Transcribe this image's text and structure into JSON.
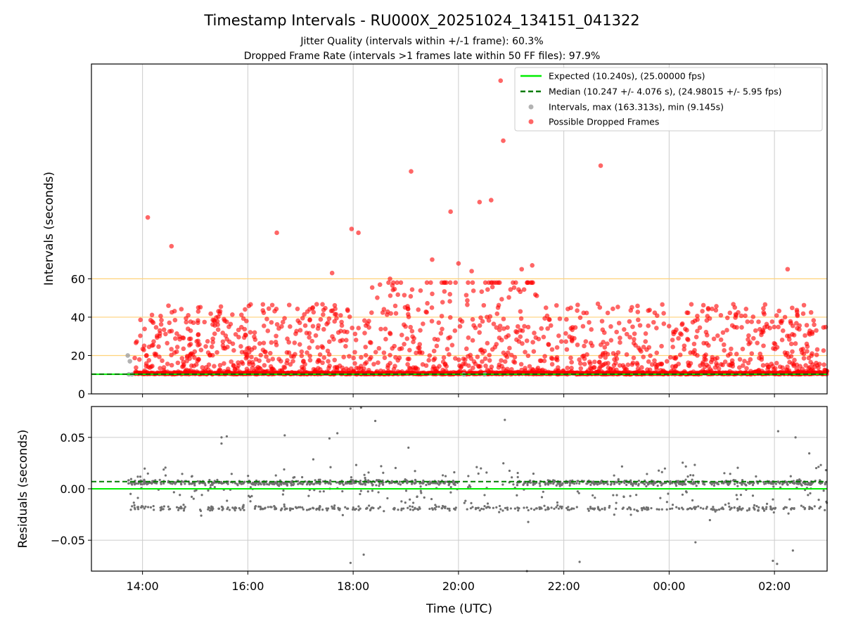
{
  "figure": {
    "title": "Timestamp Intervals - RU000X_20251024_134151_041322",
    "subtitle_1": "Jitter Quality (intervals within +/-1 frame): 60.3%",
    "subtitle_2": "Dropped Frame Rate (intervals >1 frames late within 50 FF files): 97.9%"
  },
  "colors": {
    "expected": "#00ee00",
    "median": "#007a00",
    "intervals": "#a0a0a0",
    "dropped": "#ff0000",
    "threshold": "#ffd27a",
    "grid": "#cccccc",
    "residual": "#707070"
  },
  "chart_data": [
    {
      "type": "scatter",
      "panel": "intervals",
      "ylabel": "Intervals (seconds)",
      "xlabel": "",
      "xlim_hours": [
        13.03,
        27.0
      ],
      "ylim": [
        0,
        172
      ],
      "yticks": [
        0,
        20,
        40,
        60
      ],
      "ytick_labels": [
        "0",
        "20",
        "40",
        "60"
      ],
      "threshold_lines": [
        20,
        40,
        60
      ],
      "expected_interval": 10.24,
      "median_interval": 10.247,
      "legend": {
        "position": "upper right",
        "expected": "Expected (10.240s), (25.00000 fps)",
        "median": "Median (10.247 +/- 4.076 s), (24.98015 +/- 5.95 fps)",
        "intervals": "Intervals, max (163.313s), min (9.145s)",
        "dropped": "Possible Dropped Frames"
      },
      "normal_intervals": [
        {
          "x": 13.72,
          "y": 20.0
        },
        {
          "x": 13.76,
          "y": 17.0
        },
        {
          "x": 13.74,
          "y": 10.2
        },
        {
          "x": 13.8,
          "y": 10.2
        },
        {
          "x": 20.1,
          "y": 10.2
        },
        {
          "x": 20.5,
          "y": 10.3
        }
      ],
      "dropped_outliers": [
        {
          "x": 14.1,
          "y": 92.0
        },
        {
          "x": 14.55,
          "y": 77.0
        },
        {
          "x": 16.55,
          "y": 84.0
        },
        {
          "x": 17.97,
          "y": 86.0
        },
        {
          "x": 18.1,
          "y": 84.0
        },
        {
          "x": 19.1,
          "y": 116.0
        },
        {
          "x": 19.85,
          "y": 95.0
        },
        {
          "x": 20.4,
          "y": 100.0
        },
        {
          "x": 20.62,
          "y": 101.0
        },
        {
          "x": 20.8,
          "y": 163.3
        },
        {
          "x": 20.85,
          "y": 132.0
        },
        {
          "x": 22.7,
          "y": 119.0
        },
        {
          "x": 19.5,
          "y": 70.0
        },
        {
          "x": 20.0,
          "y": 68.0
        },
        {
          "x": 20.25,
          "y": 64.0
        },
        {
          "x": 21.2,
          "y": 65.0
        },
        {
          "x": 21.4,
          "y": 67.0
        },
        {
          "x": 26.25,
          "y": 65.0
        },
        {
          "x": 17.6,
          "y": 63.0
        },
        {
          "x": 18.7,
          "y": 60.0
        }
      ],
      "dropped_cloud_hours": [
        13.85,
        27.0
      ],
      "baseline_value": 10.24
    },
    {
      "type": "scatter",
      "panel": "residuals",
      "ylabel": "Residuals (seconds)",
      "xlabel": "Time (UTC)",
      "xlim_hours": [
        13.03,
        27.0
      ],
      "ylim": [
        -0.08,
        0.08
      ],
      "yticks": [
        -0.05,
        0.0,
        0.05
      ],
      "ytick_labels": [
        "−0.05",
        "0.00",
        "0.05"
      ],
      "expected_residual": 0.0,
      "median_residual": 0.007,
      "xticks_hours": [
        14,
        16,
        18,
        20,
        22,
        24,
        26
      ],
      "xtick_labels": [
        "14:00",
        "16:00",
        "18:00",
        "20:00",
        "22:00",
        "00:00",
        "02:00"
      ],
      "residual_points": [
        {
          "x": 17.95,
          "y": 0.078
        },
        {
          "x": 18.15,
          "y": 0.079
        },
        {
          "x": 20.88,
          "y": 0.067
        },
        {
          "x": 18.42,
          "y": 0.066
        },
        {
          "x": 17.95,
          "y": -0.072
        },
        {
          "x": 18.2,
          "y": -0.064
        },
        {
          "x": 21.3,
          "y": -0.08
        },
        {
          "x": 22.3,
          "y": -0.071
        },
        {
          "x": 25.97,
          "y": -0.07
        },
        {
          "x": 26.05,
          "y": -0.073
        },
        {
          "x": 15.6,
          "y": 0.051
        },
        {
          "x": 15.5,
          "y": 0.05
        },
        {
          "x": 16.7,
          "y": 0.052
        },
        {
          "x": 17.55,
          "y": 0.049
        },
        {
          "x": 17.7,
          "y": 0.054
        },
        {
          "x": 26.07,
          "y": 0.056
        },
        {
          "x": 26.4,
          "y": 0.05
        },
        {
          "x": 15.5,
          "y": 0.044
        },
        {
          "x": 19.05,
          "y": 0.04
        },
        {
          "x": 24.5,
          "y": -0.052
        },
        {
          "x": 26.35,
          "y": -0.06
        }
      ]
    }
  ]
}
